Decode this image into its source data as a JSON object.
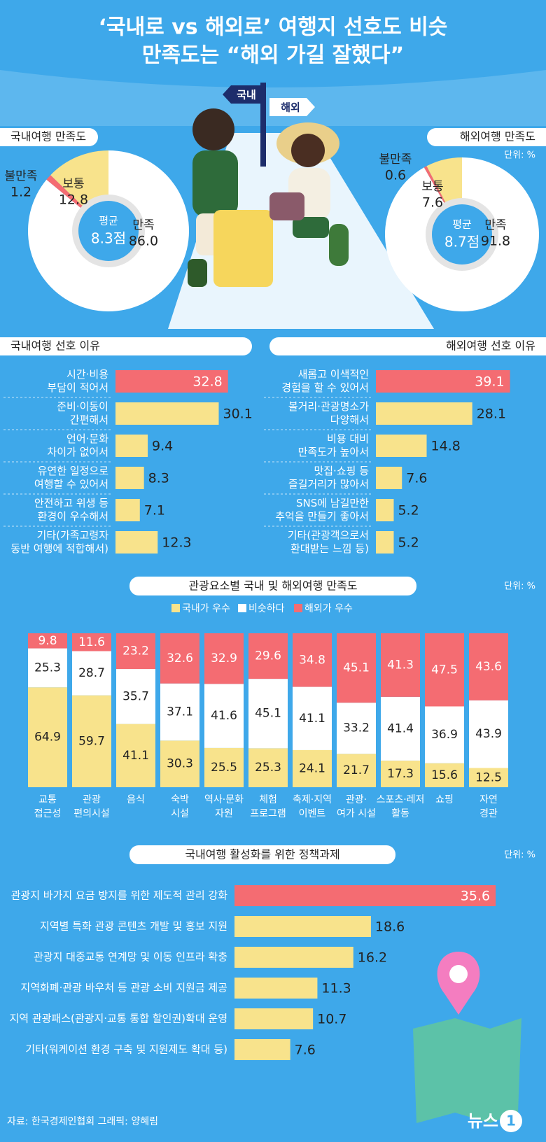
{
  "header": {
    "title_lines": [
      "‘국내로 vs 해외로’ 여행지 선호도 비슷",
      "만족도는 “해외 가길 잘했다”"
    ],
    "signs": [
      "국내",
      "해외"
    ]
  },
  "chart_data": [
    {
      "type": "pie",
      "title": "국내여행 만족도",
      "categories": [
        "만족",
        "불만족",
        "보통"
      ],
      "values": [
        86.0,
        1.2,
        12.8
      ],
      "value_labels": [
        "86.0",
        "1.2",
        "12.8"
      ],
      "colors": [
        "#ffffff",
        "#f46c72",
        "#f8e38c"
      ],
      "center": [
        "평균",
        "8.3점"
      ]
    },
    {
      "type": "pie",
      "title": "해외여행 만족도",
      "unit": "단위: %",
      "categories": [
        "만족",
        "불만족",
        "보통"
      ],
      "values": [
        91.8,
        0.6,
        7.6
      ],
      "colors": [
        "#ffffff",
        "#f46c72",
        "#f8e38c"
      ],
      "center": [
        "평균",
        "8.7점"
      ]
    },
    {
      "type": "bar",
      "orientation": "horizontal",
      "title": "국내여행 선호 이유",
      "unit": "단위: %",
      "categories": [
        [
          "시간·비용",
          "부담이 적어서"
        ],
        [
          "준비·이동이",
          "간편해서"
        ],
        [
          "언어·문화",
          "차이가 없어서"
        ],
        [
          "유연한 일정으로",
          "여행할 수 있어서"
        ],
        [
          "안전하고 위생 등",
          "환경이 우수해서"
        ],
        [
          "기타(가족고령자",
          "동반 여행에 적합해서)"
        ]
      ],
      "values": [
        32.8,
        30.1,
        9.4,
        8.3,
        7.1,
        12.3
      ],
      "colors": [
        "#f46c72",
        "#f8e38c",
        "#f8e38c",
        "#f8e38c",
        "#f8e38c",
        "#f8e38c"
      ]
    },
    {
      "type": "bar",
      "orientation": "horizontal",
      "title": "해외여행 선호 이유",
      "unit": "단위: %",
      "categories": [
        [
          "새롭고 이색적인",
          "경험을 할 수 있어서"
        ],
        [
          "볼거리·관광명소가",
          "다양해서"
        ],
        [
          "비용 대비",
          "만족도가 높아서"
        ],
        [
          "맛집·쇼핑 등",
          "즐길거리가 많아서"
        ],
        [
          "SNS에 남길만한",
          "추억을 만들기 좋아서"
        ],
        [
          "기타(관광객으로서",
          "환대받는 느낌 등)"
        ]
      ],
      "values": [
        39.1,
        28.1,
        14.8,
        7.6,
        5.2,
        5.2
      ],
      "colors": [
        "#f46c72",
        "#f8e38c",
        "#f8e38c",
        "#f8e38c",
        "#f8e38c",
        "#f8e38c"
      ]
    },
    {
      "type": "stacked_bar",
      "title": "관광요소별 국내 및 해외여행 만족도",
      "unit": "단위: %",
      "categories": [
        [
          "교통",
          "접근성"
        ],
        [
          "관광",
          "편의시설"
        ],
        [
          "음식"
        ],
        [
          "숙박",
          "시설"
        ],
        [
          "역사·문화",
          "자원"
        ],
        [
          "체험",
          "프로그램"
        ],
        [
          "축제·지역",
          "이벤트"
        ],
        [
          "관광·",
          "여가 시설"
        ],
        [
          "스포츠·레저",
          "활동"
        ],
        [
          "쇼핑"
        ],
        [
          "자연",
          "경관"
        ]
      ],
      "series": [
        {
          "name": "국내가 우수",
          "color": "#f8e38c",
          "values": [
            64.9,
            59.7,
            41.1,
            30.3,
            25.5,
            25.3,
            24.1,
            21.7,
            17.3,
            15.6,
            12.5
          ]
        },
        {
          "name": "비슷하다",
          "color": "#ffffff",
          "values": [
            25.3,
            28.7,
            35.7,
            37.1,
            41.6,
            45.1,
            41.1,
            33.2,
            41.4,
            36.9,
            43.9
          ]
        },
        {
          "name": "해외가 우수",
          "color": "#f46c72",
          "values": [
            9.8,
            11.6,
            23.2,
            32.6,
            32.9,
            29.6,
            34.8,
            45.1,
            41.3,
            47.5,
            43.6
          ]
        }
      ]
    },
    {
      "type": "bar",
      "orientation": "horizontal",
      "title": "국내여행 활성화를 위한 정책과제",
      "unit": "단위: %",
      "categories": [
        [
          "관광지 바가지 요금 방지를 위한 제도적 관리 강화"
        ],
        [
          "지역별 특화 관광 콘텐츠 개발 및 홍보 지원"
        ],
        [
          "관광지 대중교통 연계망 및 이동 인프라 확충"
        ],
        [
          "지역화폐·관광 바우처 등 관광 소비 지원금 제공"
        ],
        [
          "지역 관광패스(관광지·교통 통합 할인권)확대 운영"
        ],
        [
          "기타(워케이션 환경 구축 및 지원제도 확대 등)"
        ]
      ],
      "values": [
        35.6,
        18.6,
        16.2,
        11.3,
        10.7,
        7.6
      ],
      "colors": [
        "#f46c72",
        "#f8e38c",
        "#f8e38c",
        "#f8e38c",
        "#f8e38c",
        "#f8e38c"
      ]
    }
  ],
  "footer": {
    "source": "자료: 한국경제인협회   그래픽: 양혜림",
    "logo": [
      "뉴스",
      "1"
    ]
  }
}
